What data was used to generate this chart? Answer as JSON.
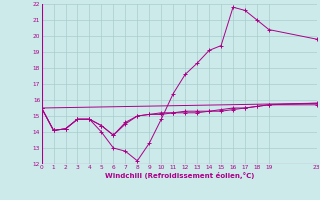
{
  "xlabel": "Windchill (Refroidissement éolien,°C)",
  "background_color": "#cceaea",
  "grid_color": "#aacccc",
  "line_color": "#aa0088",
  "xlim": [
    0,
    23
  ],
  "ylim": [
    12,
    22
  ],
  "xticks": [
    0,
    1,
    2,
    3,
    4,
    5,
    6,
    7,
    8,
    9,
    10,
    11,
    12,
    13,
    14,
    15,
    16,
    17,
    18,
    19,
    23
  ],
  "yticks": [
    12,
    13,
    14,
    15,
    16,
    17,
    18,
    19,
    20,
    21,
    22
  ],
  "series1_x": [
    0,
    1,
    2,
    3,
    4,
    5,
    6,
    7,
    8,
    9,
    10,
    11,
    12,
    13,
    14,
    15,
    16,
    17,
    18,
    19,
    23
  ],
  "series1_y": [
    15.5,
    14.1,
    14.2,
    14.8,
    14.8,
    14.0,
    13.0,
    12.8,
    12.2,
    13.3,
    14.8,
    16.4,
    17.6,
    18.3,
    19.1,
    19.4,
    21.8,
    21.6,
    21.0,
    20.4,
    19.8
  ],
  "series2_x": [
    0,
    1,
    2,
    3,
    4,
    5,
    6,
    7,
    8,
    9,
    10,
    11,
    12,
    13,
    14,
    15,
    16,
    17,
    18,
    19,
    23
  ],
  "series2_y": [
    15.5,
    14.1,
    14.2,
    14.8,
    14.8,
    14.4,
    13.8,
    14.5,
    15.0,
    15.1,
    15.1,
    15.2,
    15.2,
    15.2,
    15.3,
    15.3,
    15.4,
    15.5,
    15.6,
    15.7,
    15.7
  ],
  "series3_x": [
    0,
    23
  ],
  "series3_y": [
    15.5,
    15.8
  ],
  "series4_x": [
    0,
    1,
    2,
    3,
    4,
    5,
    6,
    7,
    8,
    9,
    10,
    11,
    12,
    13,
    14,
    15,
    16,
    17,
    18,
    19,
    23
  ],
  "series4_y": [
    15.5,
    14.1,
    14.2,
    14.8,
    14.8,
    14.4,
    13.8,
    14.6,
    15.0,
    15.1,
    15.2,
    15.2,
    15.3,
    15.3,
    15.3,
    15.4,
    15.5,
    15.5,
    15.6,
    15.7,
    15.8
  ]
}
